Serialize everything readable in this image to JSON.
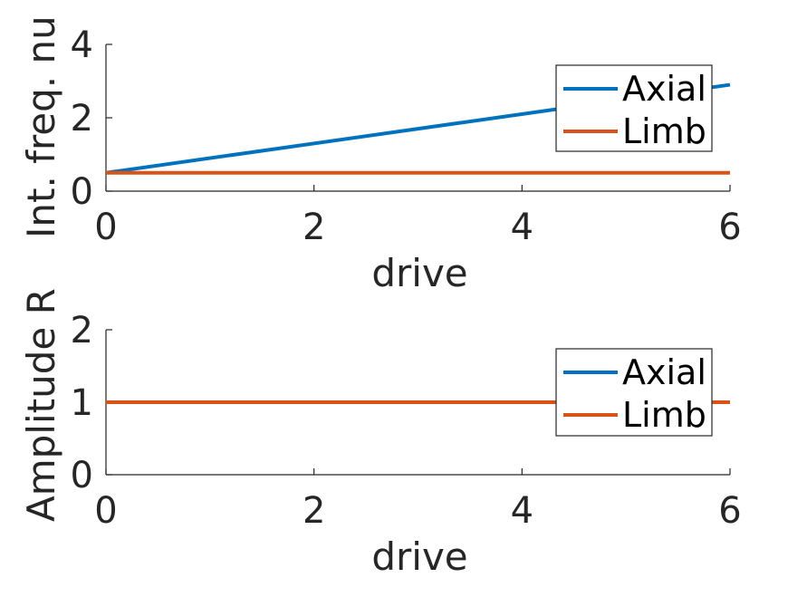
{
  "chart_data": [
    {
      "type": "line",
      "xlabel": "drive",
      "ylabel": "Int. freq. nu",
      "xlim": [
        0,
        6
      ],
      "ylim": [
        0,
        4
      ],
      "xticks": [
        "0",
        "2",
        "4",
        "6"
      ],
      "yticks": [
        "0",
        "2",
        "4"
      ],
      "grid": false,
      "legend_position": "top-right",
      "series": [
        {
          "name": "Axial",
          "color": "#0072BD",
          "x": [
            0,
            6
          ],
          "y": [
            0.5,
            2.9
          ]
        },
        {
          "name": "Limb",
          "color": "#D95319",
          "x": [
            0,
            6
          ],
          "y": [
            0.5,
            0.5
          ]
        }
      ]
    },
    {
      "type": "line",
      "xlabel": "drive",
      "ylabel": "Amplitude R",
      "xlim": [
        0,
        6
      ],
      "ylim": [
        0,
        2
      ],
      "xticks": [
        "0",
        "2",
        "4",
        "6"
      ],
      "yticks": [
        "0",
        "1",
        "2"
      ],
      "grid": false,
      "legend_position": "top-right",
      "series": [
        {
          "name": "Axial",
          "color": "#0072BD",
          "x": [
            0,
            6
          ],
          "y": [
            1,
            1
          ]
        },
        {
          "name": "Limb",
          "color": "#D95319",
          "x": [
            0,
            6
          ],
          "y": [
            1,
            1
          ]
        }
      ]
    }
  ]
}
